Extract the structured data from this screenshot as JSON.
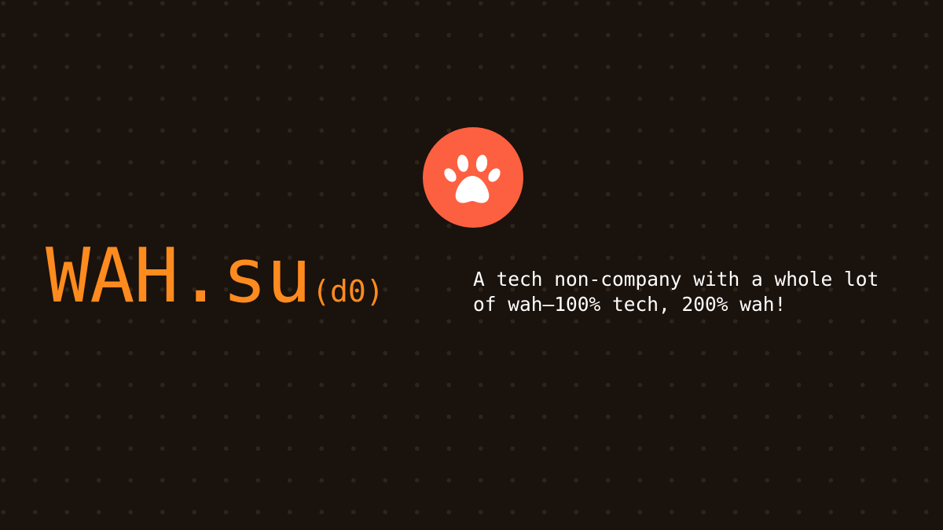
{
  "logo": {
    "icon": "paw-icon",
    "circle_color": "#fc6040",
    "paw_color": "#ffffff"
  },
  "brand": {
    "name": "WAH.su",
    "suffix": "(d0)",
    "color": "#ff8b1f"
  },
  "tagline": {
    "text": "A tech non-company with a whole lot\nof wah—100% tech, 200% wah!",
    "color": "#ffffff"
  },
  "background": {
    "color": "#1a120c",
    "dot_color": "#2e241c",
    "pattern": "dot-grid"
  }
}
